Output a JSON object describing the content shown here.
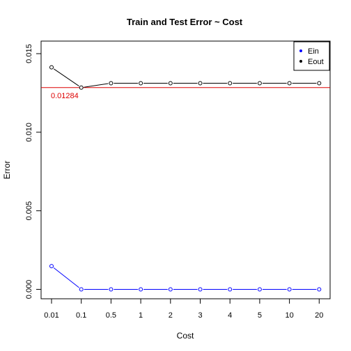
{
  "chart_data": {
    "type": "line",
    "title": "Train and Test Error ~ Cost",
    "xlabel": "Cost",
    "ylabel": "Error",
    "categories": [
      "0.01",
      "0.1",
      "0.5",
      "1",
      "2",
      "3",
      "4",
      "5",
      "10",
      "20"
    ],
    "ylim": [
      -0.0006,
      0.0158
    ],
    "yticks": [
      "0.000",
      "0.005",
      "0.010",
      "0.015"
    ],
    "series": [
      {
        "name": "Ein",
        "color": "#0000ff",
        "values": [
          0.00148,
          0.0,
          0.0,
          0.0,
          0.0,
          0.0,
          0.0,
          0.0,
          0.0,
          0.0
        ]
      },
      {
        "name": "Eout",
        "color": "#000000",
        "values": [
          0.01413,
          0.01284,
          0.01312,
          0.01312,
          0.01312,
          0.01312,
          0.01312,
          0.01312,
          0.01312,
          0.01312
        ]
      }
    ],
    "reference_line": {
      "value": 0.01284,
      "label": "0.01284",
      "color": "#dd0000"
    },
    "legend": {
      "placement": "top-right",
      "entries": [
        "Ein",
        "Eout"
      ]
    },
    "grid": false
  }
}
